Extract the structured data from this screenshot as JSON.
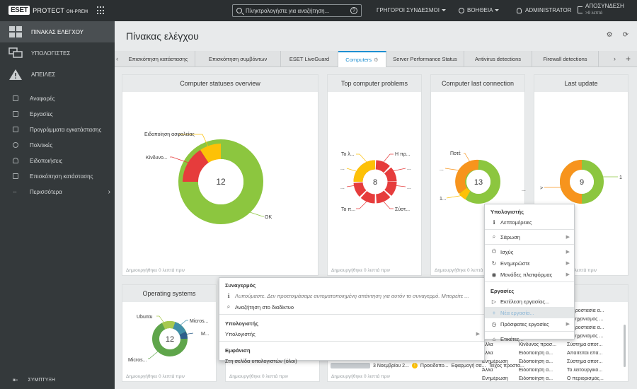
{
  "topbar": {
    "logo_mark": "ESET",
    "product": "PROTECT",
    "product_suffix": "ON-PREM",
    "search_placeholder": "Πληκτρολογήστε για αναζήτηση...",
    "help": "?",
    "quick_links": "ΓΡΗΓΟΡΟΙ ΣΥΝΔΕΣΜΟΙ",
    "help_menu": "ΒΟΗΘΕΙΑ",
    "user": "ADMINISTRATOR",
    "logout": "ΑΠΟΣΥΝΔΕΣΗ",
    "logout_sub": ">9 λεπτά"
  },
  "sidebar": {
    "main_items": [
      {
        "label": "ΠΙΝΑΚΑΣ ΕΛΕΓΧΟΥ",
        "icon": "dashboard-icon"
      },
      {
        "label": "ΥΠΟΛΟΓΙΣΤΕΣ",
        "icon": "computers-icon"
      },
      {
        "label": "ΑΠΕΙΛΕΣ",
        "icon": "threats-icon"
      }
    ],
    "sub_items": [
      "Αναφορές",
      "Εργασίες",
      "Προγράμματα εγκατάστασης",
      "Πολιτικές",
      "Ειδοποιήσεις",
      "Επισκόπηση κατάστασης",
      "Περισσότερα"
    ],
    "collapse": "ΣΥΜΠΤΥΞΗ"
  },
  "page": {
    "title": "Πίνακας ελέγχου"
  },
  "tabs": [
    "Επισκόπηση κατάστασης",
    "Επισκόπηση συμβάντων",
    "ESET LiveGuard",
    "Computers",
    "Server Performance Status",
    "Antivirus detections",
    "Firewall detections"
  ],
  "cards": {
    "statuses": {
      "title": "Computer statuses overview",
      "center": "12",
      "labels": [
        "Ειδοποίηση ασφαλείας",
        "Κίνδυνο...",
        "OK"
      ],
      "footer": "Δημιουργήθηκε 0 λεπτά πριν"
    },
    "problems": {
      "title": "Top computer problems",
      "center": "8",
      "labels": [
        "Το λ...",
        "Η πρ...",
        "...",
        "...",
        "...",
        "...",
        "Το π...",
        "Σύστ..."
      ],
      "footer": "Δημιουργήθηκε 0 λεπτά πριν"
    },
    "last_connection": {
      "title": "Computer last connection",
      "center": "13",
      "labels": [
        "Ποτέ",
        "...",
        "1...",
        "..."
      ],
      "footer": "Δημιουργήθηκε 0 λεπτά πριν"
    },
    "last_update": {
      "title": "Last update",
      "center": "9",
      "labels": [
        "1",
        ">"
      ],
      "footer": "Δημιουργήθηκε 0 λεπτά πριν"
    },
    "os": {
      "title": "Operating systems",
      "center": "12",
      "labels": [
        "Ubuntu",
        "Micros...",
        "M...",
        "Micros..."
      ],
      "footer": "Δημιουργήθηκε 0 λεπτά πριν"
    },
    "bottom_mid": {
      "footer": "Δημιουργήθηκε 0 λεπτά πριν"
    }
  },
  "alarm_menu": {
    "alarm_head": "Συναγερμός",
    "alarm_text": "Λυπούμαστε. Δεν προετοιμάσαμε αυτοματοποιημένη απάντηση για αυτόν το συναγερμό. Μπορείτε ...",
    "search_web": "Αναζήτηση στο διαδίκτυο",
    "computer_head": "Υπολογιστής",
    "computer_item": "Υπολογιστής",
    "view_head": "Εμφάνιση",
    "view_item": "Στη σελίδα υπολογιστών (όλοι)"
  },
  "computer_menu": {
    "head": "Υπολογιστής",
    "details": "Λεπτομέρειες",
    "scan": "Σάρωση",
    "power": "Ισχύς",
    "update": "Ενημερώστε",
    "platform": "Μονάδες πλατφόρμας",
    "tasks_head": "Εργασίες",
    "run_task": "Εκτέλεση εργασίας...",
    "new_task": "Νέα εργασία...",
    "recent_tasks": "Πρόσφατες εργασίες",
    "tags": "Ετικέτες..."
  },
  "bottom_table": {
    "date_cell": "3 Νοεμβρίου 2...",
    "warn_cell": "Προειδοπο...",
    "app_cell": "Εφαρμογή σα...",
    "wall_cell": "Τείχος προστα...",
    "footer_right": "Δημιουργήθηκε 0 λεπτά πριν",
    "rows": [
      [
        "",
        "",
        "Η προστασία α..."
      ],
      [
        "",
        "",
        "Ο μηχανισμός ..."
      ],
      [
        "",
        "",
        "Η προστασία α..."
      ],
      [
        "Άλλα",
        "Κίνδυνος προσ...",
        "Ο μηχανισμός ..."
      ],
      [
        "Άλλα",
        "Κίνδυνος προσ...",
        "Σύστημα αποτ..."
      ],
      [
        "Άλλα",
        "Ειδοποίηση α...",
        "Απαιτείται επα..."
      ],
      [
        "Ενημέρωση",
        "Ειδοποίηση α...",
        "Σύστημα αποτ..."
      ],
      [
        "Άλλα",
        "Ειδοποίηση α...",
        "Το λειτουργικό..."
      ],
      [
        "Ενημέρωση",
        "Ειδοποίηση α...",
        "Ο περιορισμός..."
      ]
    ]
  },
  "colors": {
    "green": "#8cc63f",
    "red": "#e63c3c",
    "yellow": "#fdc107",
    "orange": "#f7941d",
    "teal": "#3f8fa8",
    "accent": "#1d8fd1"
  }
}
